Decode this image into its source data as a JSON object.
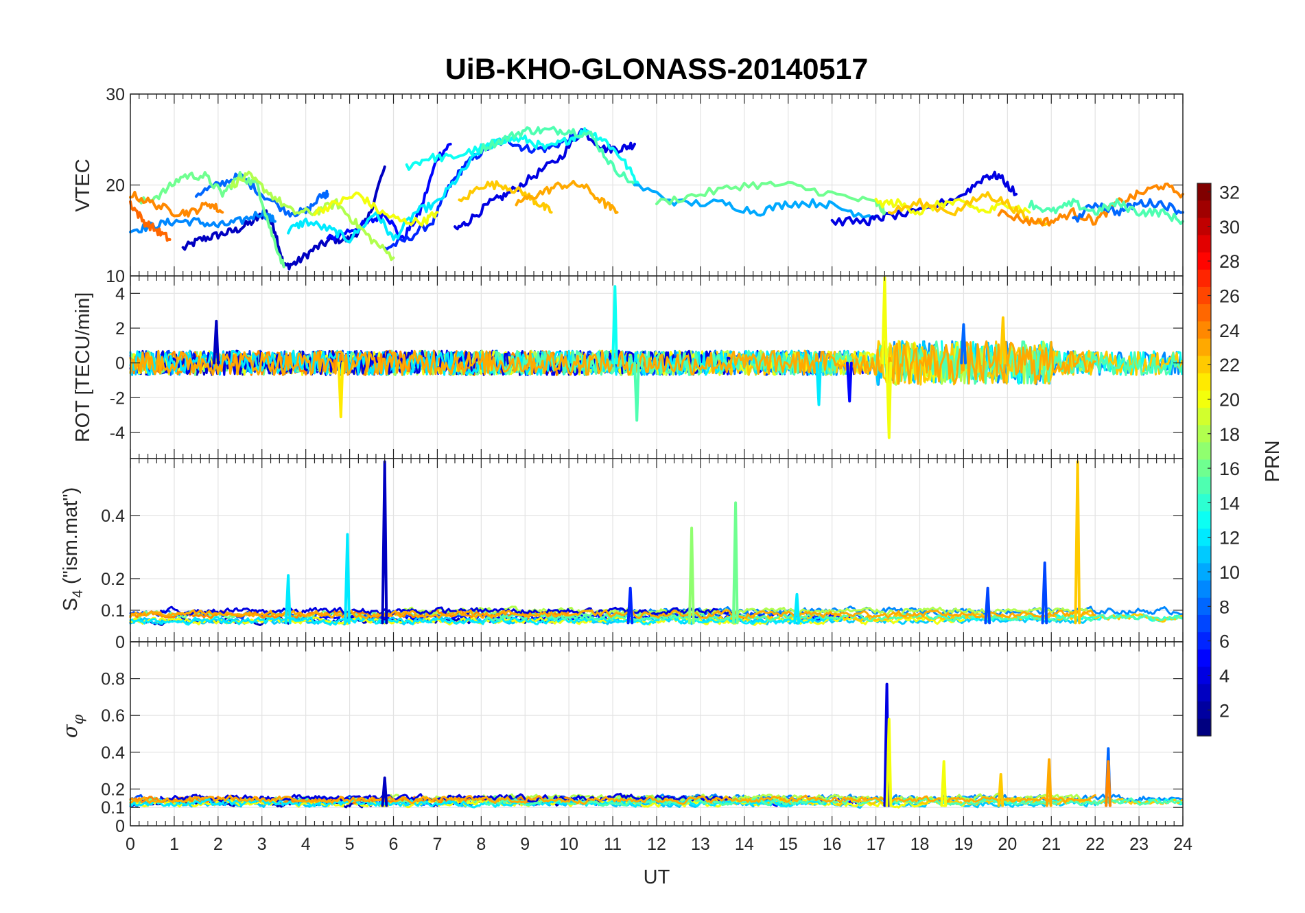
{
  "chart_data": {
    "type": "line",
    "title": "UiB-KHO-GLONASS-20140517",
    "xlabel": "UT",
    "xlim": [
      0,
      24
    ],
    "x_ticks": [
      "0",
      "1",
      "2",
      "3",
      "4",
      "5",
      "6",
      "7",
      "8",
      "9",
      "10",
      "11",
      "12",
      "13",
      "14",
      "15",
      "16",
      "17",
      "18",
      "19",
      "20",
      "21",
      "22",
      "23",
      "24"
    ],
    "grid": true,
    "colormap": "jet",
    "colorbar": {
      "label": "PRN",
      "range": [
        1,
        32
      ],
      "ticks": [
        "2",
        "4",
        "6",
        "8",
        "10",
        "12",
        "14",
        "16",
        "18",
        "20",
        "22",
        "24",
        "26",
        "28",
        "30",
        "32"
      ],
      "placement": "right"
    },
    "panels": [
      {
        "id": "vtec",
        "ylabel": "VTEC",
        "ylim": [
          10,
          30
        ],
        "y_ticks": [
          "10",
          "20",
          "30"
        ],
        "series": [
          {
            "prn": 3,
            "x": [
              1.2,
              1.6,
              2.0,
              2.4,
              2.8,
              3.1,
              3.3,
              3.5,
              3.8,
              4.2,
              4.6,
              5.0,
              5.4,
              5.8
            ],
            "y": [
              13,
              14,
              14.5,
              15,
              16,
              17,
              15,
              11,
              11.5,
              13,
              14,
              14,
              16,
              22
            ]
          },
          {
            "prn": 5,
            "x": [
              4.5,
              5.0,
              5.5,
              5.8,
              6.2,
              6.6,
              7.0,
              7.3
            ],
            "y": [
              14,
              15,
              16,
              17,
              14,
              17,
              23,
              24.5
            ]
          },
          {
            "prn": 6,
            "x": [
              5.8,
              6.3,
              6.9,
              7.3,
              7.6,
              8.1,
              8.6,
              9.0,
              9.5,
              10.0,
              10.4
            ],
            "y": [
              13,
              14,
              16,
              20,
              22,
              24,
              25,
              24,
              24,
              25,
              26
            ]
          },
          {
            "prn": 4,
            "x": [
              7.4,
              7.7,
              8.2,
              8.6,
              9.2,
              9.8,
              10.3,
              10.8,
              11.2,
              11.5
            ],
            "y": [
              15,
              16,
              18,
              19,
              21,
              23,
              26,
              24,
              24,
              24.5
            ]
          },
          {
            "prn": 9,
            "x": [
              0.0,
              0.5,
              1.0,
              1.5,
              2.0,
              2.5,
              3.0,
              3.3
            ],
            "y": [
              15,
              15.5,
              16,
              16,
              15.5,
              16,
              17,
              16
            ]
          },
          {
            "prn": 8,
            "x": [
              1.5,
              2.0,
              2.5,
              3.0,
              3.6,
              4.0,
              4.4,
              4.5
            ],
            "y": [
              19,
              20,
              21,
              19,
              17,
              17,
              19,
              19
            ]
          },
          {
            "prn": 12,
            "x": [
              3.6,
              4.0,
              4.6,
              5.0,
              5.6,
              6.0,
              6.5,
              7.0,
              7.5,
              8.0,
              8.6
            ],
            "y": [
              15,
              16,
              15,
              14,
              17,
              14,
              17,
              18,
              21,
              24,
              25
            ]
          },
          {
            "prn": 13,
            "x": [
              6.3,
              6.8,
              7.3,
              8.0,
              8.5,
              9.0,
              9.5,
              10.0,
              10.4,
              10.8,
              11.2,
              11.6
            ],
            "y": [
              22,
              23,
              23,
              24,
              25,
              25,
              24,
              25,
              26,
              25,
              23,
              20
            ]
          },
          {
            "prn": 15,
            "x": [
              8.0,
              8.5,
              9.0,
              9.5,
              10.0,
              10.5,
              11.0,
              11.5
            ],
            "y": [
              24,
              25,
              26,
              26,
              26,
              25.5,
              22,
              20
            ]
          },
          {
            "prn": 16,
            "x": [
              0.2,
              0.7,
              1.2,
              1.7,
              2.1,
              2.5,
              2.9,
              3.2,
              3.5
            ],
            "y": [
              18,
              19,
              21,
              21,
              19,
              21,
              20,
              15,
              11
            ]
          },
          {
            "prn": 18,
            "x": [
              2.3,
              2.7,
              3.2,
              3.7,
              4.2,
              4.7,
              5.1,
              5.5,
              6.0
            ],
            "y": [
              20,
              21,
              19,
              17,
              17,
              18,
              16,
              14,
              12
            ]
          },
          {
            "prn": 20,
            "x": [
              4.2,
              4.7,
              5.2,
              5.7,
              6.2,
              6.7,
              7.0
            ],
            "y": [
              17,
              18,
              19,
              17,
              16,
              16,
              17
            ]
          },
          {
            "prn": 22,
            "x": [
              7.5,
              8.0,
              8.5,
              9.0,
              9.3,
              9.6
            ],
            "y": [
              18,
              20,
              20,
              19,
              18,
              17
            ]
          },
          {
            "prn": 23,
            "x": [
              8.8,
              9.3,
              9.8,
              10.3,
              10.8,
              11.1
            ],
            "y": [
              18,
              19,
              20,
              20,
              18,
              17
            ]
          },
          {
            "prn": 24,
            "x": [
              0.0,
              0.5,
              1.0,
              1.4,
              1.8,
              2.1
            ],
            "y": [
              19,
              18,
              17,
              17,
              18,
              17
            ]
          },
          {
            "prn": 25,
            "x": [
              0.0,
              0.3,
              0.6,
              0.9
            ],
            "y": [
              18,
              16,
              15,
              14
            ]
          },
          {
            "prn": 10,
            "x": [
              11.5,
              12.5,
              13.5,
              14.3,
              15.0,
              15.8,
              16.5,
              17.0
            ],
            "y": [
              20,
              18,
              18,
              17,
              18,
              18,
              17,
              16.5
            ]
          },
          {
            "prn": 4,
            "x": [
              16.0,
              16.8,
              17.2,
              18.0,
              19.0,
              19.5,
              19.8,
              20.2
            ],
            "y": [
              16,
              16,
              16.5,
              17,
              19,
              21,
              21,
              19
            ]
          },
          {
            "prn": 16,
            "x": [
              12.0,
              13.0,
              14.0,
              15.0,
              16.0,
              17.0,
              17.2
            ],
            "y": [
              18,
              19,
              20,
              20,
              19,
              18,
              17
            ]
          },
          {
            "prn": 20,
            "x": [
              17.0,
              17.5,
              18.0,
              18.5,
              19.0,
              19.5,
              20.0,
              20.5
            ],
            "y": [
              18,
              18,
              17,
              18,
              18,
              17,
              18,
              17
            ]
          },
          {
            "prn": 22,
            "x": [
              17.3,
              18.0,
              18.8,
              19.5,
              20.0,
              20.5,
              21.0
            ],
            "y": [
              17,
              18,
              17,
              19,
              18,
              16,
              16
            ]
          },
          {
            "prn": 24,
            "x": [
              19.8,
              20.5,
              21.0,
              21.5,
              22.0,
              22.5,
              23.0,
              23.5,
              24.0
            ],
            "y": [
              17,
              16,
              16,
              17,
              16,
              18,
              19,
              20,
              19
            ]
          },
          {
            "prn": 8,
            "x": [
              21.5,
              22.0,
              22.5,
              23.0,
              23.5,
              24.0
            ],
            "y": [
              16,
              18,
              17,
              18,
              18,
              17
            ]
          },
          {
            "prn": 15,
            "x": [
              20.5,
              21.0,
              21.5,
              22.0,
              22.5,
              23.0,
              23.5,
              24.0
            ],
            "y": [
              18,
              17,
              18,
              17,
              18,
              17,
              17,
              16
            ]
          }
        ]
      },
      {
        "id": "rot",
        "ylabel": "ROT [TECU/min]",
        "ylim": [
          -5.5,
          5
        ],
        "y_ticks": [
          "-4",
          "-2",
          "0",
          "2",
          "4"
        ],
        "spikes": [
          {
            "prn": 3,
            "x": 1.96,
            "y": 2.4
          },
          {
            "prn": 21,
            "x": 4.8,
            "y": -3.1
          },
          {
            "prn": 13,
            "x": 11.05,
            "y": 4.4
          },
          {
            "prn": 15,
            "x": 11.55,
            "y": -3.3
          },
          {
            "prn": 20,
            "x": 17.2,
            "y": 4.9
          },
          {
            "prn": 20,
            "x": 17.3,
            "y": -4.3
          },
          {
            "prn": 5,
            "x": 16.4,
            "y": -2.2
          },
          {
            "prn": 12,
            "x": 15.7,
            "y": -2.4
          },
          {
            "prn": 22,
            "x": 19.9,
            "y": 2.6
          },
          {
            "prn": 8,
            "x": 19.0,
            "y": 2.2
          }
        ]
      },
      {
        "id": "s4",
        "ylabel": "S4 (\"ism.mat\")",
        "ylim": [
          0,
          0.58
        ],
        "y_ticks": [
          "0",
          "0.1",
          "0.2",
          "0.4"
        ],
        "spikes": [
          {
            "prn": 3,
            "x": 5.8,
            "y": 0.57
          },
          {
            "prn": 12,
            "x": 3.6,
            "y": 0.21
          },
          {
            "prn": 12,
            "x": 4.95,
            "y": 0.34
          },
          {
            "prn": 17,
            "x": 12.8,
            "y": 0.36
          },
          {
            "prn": 16,
            "x": 13.8,
            "y": 0.44
          },
          {
            "prn": 6,
            "x": 11.4,
            "y": 0.17
          },
          {
            "prn": 22,
            "x": 21.6,
            "y": 0.57
          },
          {
            "prn": 7,
            "x": 20.85,
            "y": 0.25
          },
          {
            "prn": 7,
            "x": 19.55,
            "y": 0.17
          },
          {
            "prn": 12,
            "x": 15.2,
            "y": 0.15
          }
        ]
      },
      {
        "id": "sigma_phi",
        "ylabel": "σ φ",
        "ylim": [
          0,
          1
        ],
        "y_ticks": [
          "0",
          "0.1",
          "0.2",
          "0.4",
          "0.6",
          "0.8"
        ],
        "spikes": [
          {
            "prn": 4,
            "x": 17.25,
            "y": 0.77
          },
          {
            "prn": 20,
            "x": 17.3,
            "y": 0.58
          },
          {
            "prn": 8,
            "x": 22.3,
            "y": 0.42
          },
          {
            "prn": 24,
            "x": 22.3,
            "y": 0.35
          },
          {
            "prn": 23,
            "x": 20.95,
            "y": 0.36
          },
          {
            "prn": 20,
            "x": 18.55,
            "y": 0.35
          },
          {
            "prn": 22,
            "x": 19.85,
            "y": 0.28
          },
          {
            "prn": 3,
            "x": 5.8,
            "y": 0.26
          }
        ]
      }
    ]
  }
}
